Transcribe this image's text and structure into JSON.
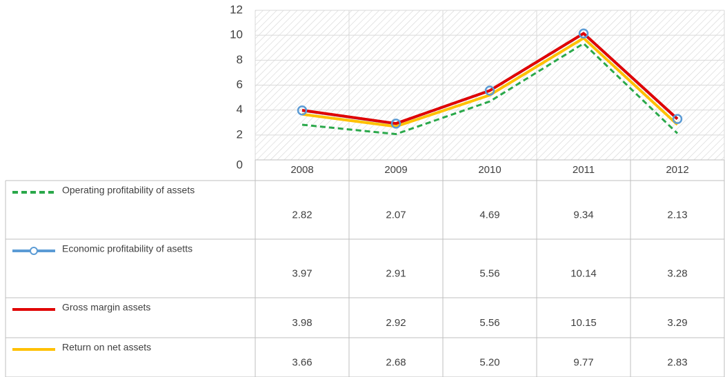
{
  "chart_data": {
    "type": "line",
    "categories": [
      "2008",
      "2009",
      "2010",
      "2011",
      "2012"
    ],
    "ylim": [
      0,
      12
    ],
    "yticks": [
      0,
      2,
      4,
      6,
      8,
      10,
      12
    ],
    "grid": true,
    "series": [
      {
        "name": "Operating profitability of assets",
        "color": "#2aa84a",
        "dash": true,
        "values": [
          2.82,
          2.07,
          4.69,
          9.34,
          2.13
        ],
        "value_labels": [
          "2.82",
          "2.07",
          "4.69",
          "9.34",
          "2.13"
        ]
      },
      {
        "name": "Economic profitability of asetts",
        "color": "#5b9bd5",
        "marker": "circle",
        "values": [
          3.97,
          2.91,
          5.56,
          10.14,
          3.28
        ],
        "value_labels": [
          "3.97",
          "2.91",
          "5.56",
          "10.14",
          "3.28"
        ]
      },
      {
        "name": "Gross margin assets",
        "color": "#e00000",
        "values": [
          3.98,
          2.92,
          5.56,
          10.15,
          3.29
        ],
        "value_labels": [
          "3.98",
          "2.92",
          "5.56",
          "10.15",
          "3.29"
        ]
      },
      {
        "name": "Return on net assets",
        "color": "#ffc000",
        "values": [
          3.66,
          2.68,
          5.2,
          9.77,
          2.83
        ],
        "value_labels": [
          "3.66",
          "2.68",
          "5.20",
          "9.77",
          "2.83"
        ]
      }
    ]
  }
}
